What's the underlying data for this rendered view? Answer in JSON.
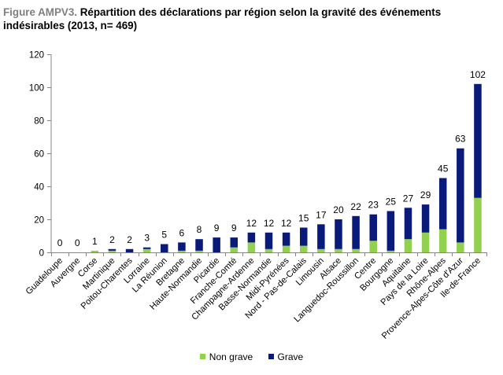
{
  "figure": {
    "prefix": "Figure AMPV3.",
    "title": "Répartition des déclarations par région selon la gravité des événements indésirables (2013, n= 469)"
  },
  "colors": {
    "non_grave": "#92d050",
    "grave": "#0a1a7a",
    "axis": "#868686",
    "gridline": "#d9d9d9"
  },
  "chart_data": {
    "type": "bar",
    "stacked": true,
    "categories": [
      "Guadeloupe",
      "Auvergne",
      "Corse",
      "Martinique",
      "Poitou-Charentes",
      "Lorraine",
      "La Réunion",
      "Bretagne",
      "Haute-Normandie",
      "Picardie",
      "Franche-Comté",
      "Champagne-Ardenne",
      "Basse-Normandie",
      "Midi-Pyrénées",
      "Nord - Pas-de-Calais",
      "Limousin",
      "Alsace",
      "Languedoc-Roussillon",
      "Centre",
      "Bourgogne",
      "Aquitaine",
      "Pays de la Loire",
      "Rhône-Alpes",
      "Provence-Alpes-Côte d'Azur",
      "Ile-de-France"
    ],
    "series": [
      {
        "name": "Non grave",
        "values": [
          0,
          0,
          1,
          1,
          0,
          2,
          0,
          1,
          1,
          0,
          3,
          6,
          2,
          4,
          4,
          2,
          2,
          2,
          7,
          1,
          8,
          12,
          14,
          6,
          33
        ]
      },
      {
        "name": "Grave",
        "values": [
          0,
          0,
          0,
          1,
          2,
          1,
          5,
          5,
          7,
          9,
          6,
          6,
          10,
          8,
          11,
          15,
          18,
          20,
          16,
          24,
          19,
          17,
          31,
          57,
          69
        ]
      }
    ],
    "totals": [
      0,
      0,
      1,
      2,
      2,
      3,
      5,
      6,
      8,
      9,
      9,
      12,
      12,
      12,
      15,
      17,
      20,
      22,
      23,
      25,
      27,
      29,
      45,
      63,
      102
    ],
    "ylim": [
      0,
      120
    ],
    "yticks": [
      0,
      20,
      40,
      60,
      80,
      100,
      120
    ],
    "xlabel": "",
    "ylabel": "",
    "grid": false,
    "legend_position": "bottom"
  }
}
